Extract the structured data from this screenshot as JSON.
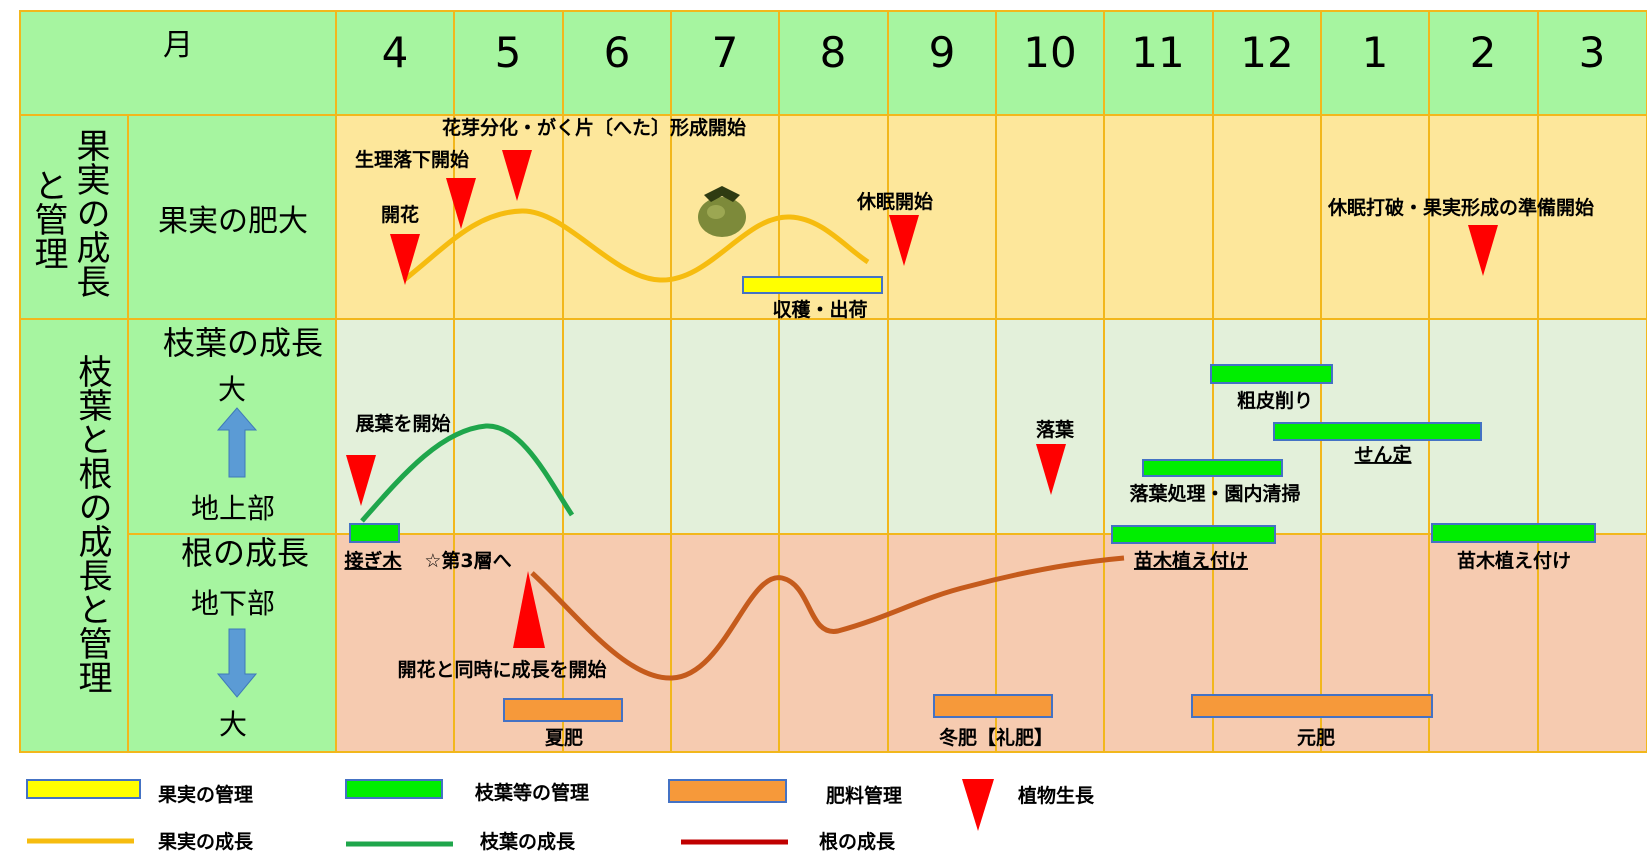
{
  "header": {
    "month_label": "月",
    "months": [
      "4",
      "5",
      "6",
      "7",
      "8",
      "9",
      "10",
      "11",
      "12",
      "1",
      "2",
      "3"
    ]
  },
  "rows": {
    "fruit": {
      "group_label_line1": "果実の成長",
      "group_label_line2": "と管理",
      "label": "果実の肥大"
    },
    "branch": {
      "group_label": "枝葉と根の成長と管理",
      "label": "枝葉の成長",
      "large": "大",
      "above_ground": "地上部",
      "root_label": "根の成長",
      "below_ground": "地下部",
      "large_bottom": "大"
    }
  },
  "annotations": {
    "kaika": "開花",
    "seiri": "生理落下開始",
    "hanamebunka": "花芽分化・がく片〔へた〕形成開始",
    "kyumin": "休眠開始",
    "shukaku": "収穫・出荷",
    "kyumin_daha": "休眠打破・果実形成の準備開始",
    "tenyo": "展葉を開始",
    "rakuyo": "落葉",
    "sohi": "粗皮削り",
    "sentei": "せん定",
    "rakuyo_shori": "落葉処理・園内清掃",
    "naegi1": "苗木植え付け",
    "naegi2": "苗木植え付け",
    "tsugiki": "接ぎ木",
    "layer3": "☆第3層へ",
    "kaika_doji": "開花と同時に成長を開始",
    "natsugoe": "夏肥",
    "fuyugoe": "冬肥【礼肥】",
    "motogoe": "元肥"
  },
  "legend": {
    "fruit_mgmt": "果実の管理",
    "branch_mgmt": "枝葉等の管理",
    "fert_mgmt": "肥料管理",
    "plant_growth": "植物生長",
    "fruit_growth": "果実の成長",
    "branch_growth": "枝葉の成長",
    "root_growth": "根の成長"
  },
  "colors": {
    "header_green": "#a6f5a0",
    "grid_line": "#f2b71c",
    "fruit_row": "#fde79b",
    "branch_row": "#e3f0da",
    "root_row": "#f6cbb0",
    "fruit_curve": "#f6bc0f",
    "branch_curve": "#1fa64b",
    "root_curve": "#c55b1c",
    "triangle": "#ff0000",
    "mgmt_yellow": "#ffff00",
    "mgmt_green": "#00ee00",
    "mgmt_orange": "#f6993a",
    "legend_root_line": "#c00000",
    "arrow_blue": "#5b9bd5"
  },
  "icons": {
    "fruit": "persimmon-fruit-icon",
    "arrow_up": "up-arrow-icon",
    "arrow_down": "down-arrow-icon"
  }
}
